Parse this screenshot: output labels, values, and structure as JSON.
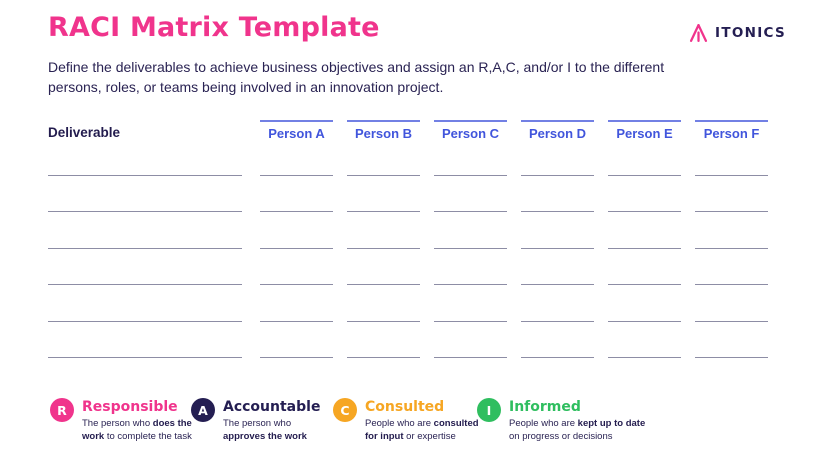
{
  "header": {
    "title": "RACI Matrix Template",
    "logo_text": "ITONICS",
    "description_line1": "Define the deliverables to achieve business objectives and assign an R,A,C, and/or I to the different",
    "description_line2": "persons, roles, or teams being involved in an innovation project."
  },
  "table": {
    "deliverable_label": "Deliverable",
    "person_columns": [
      "Person A",
      "Person B",
      "Person C",
      "Person D",
      "Person E",
      "Person F"
    ],
    "row_count": 6
  },
  "legend": {
    "items": [
      {
        "letter": "R",
        "title": "Responsible",
        "color": "#F0348C",
        "desc_pre": "The person who ",
        "desc_bold": "does the work",
        "desc_post": " to complete the task"
      },
      {
        "letter": "A",
        "title": "Accountable",
        "color": "#241E52",
        "desc_pre": "The person who ",
        "desc_bold": "approves the work",
        "desc_post": ""
      },
      {
        "letter": "C",
        "title": "Consulted",
        "color": "#F6A623",
        "desc_pre": "People who are ",
        "desc_bold": "consulted for input",
        "desc_post": " or expertise"
      },
      {
        "letter": "I",
        "title": "Informed",
        "color": "#2FBE5F",
        "desc_pre": "People who are ",
        "desc_bold": "kept up to date",
        "desc_post": " on progress or decisions"
      }
    ]
  },
  "colors": {
    "pink": "#F0348C",
    "navy": "#241E52",
    "orange": "#F6A623",
    "green": "#2FBE5F",
    "header_blue": "#4155DC",
    "header_line_blue": "#7280E4",
    "row_line": "#8D8DA5",
    "background": "#FFFFFF"
  }
}
